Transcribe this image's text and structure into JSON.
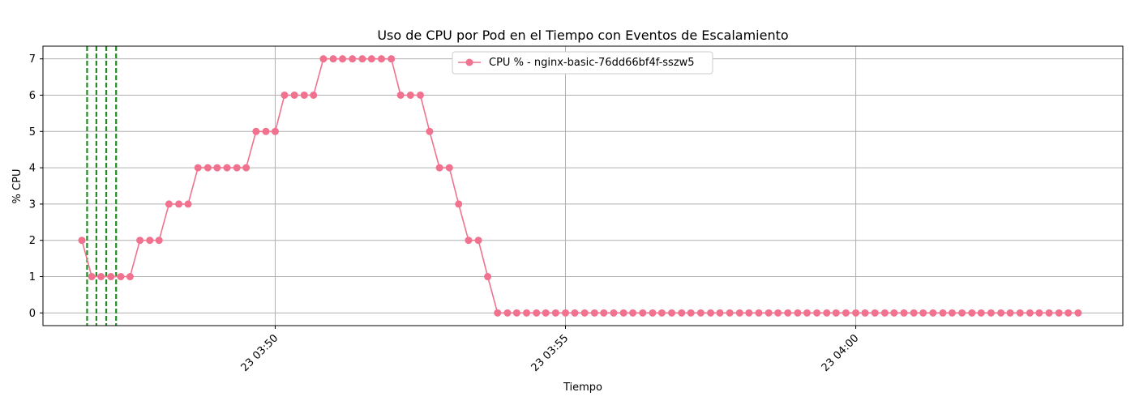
{
  "chart_data": {
    "type": "line",
    "title": "Uso de CPU por Pod en el Tiempo con Eventos de Escalamiento",
    "xlabel": "Tiempo",
    "ylabel": "% CPU",
    "x_tick_labels": [
      "23 03:50",
      "23 03:55",
      "23 04:00"
    ],
    "y_ticks": [
      0,
      1,
      2,
      3,
      4,
      5,
      6,
      7
    ],
    "ylim": [
      -0.35,
      7.35
    ],
    "grid": true,
    "legend_position": "top-center",
    "colors": {
      "series": "#f0728f",
      "events": "#228b22",
      "grid": "#b0b0b0"
    },
    "x_unit": "minutes after 23 03:50",
    "xlim": [
      -4.0,
      14.6
    ],
    "series": [
      {
        "name": "CPU % - nginx-basic-76dd66bf4f-sszw5",
        "x": [
          -3.33,
          -3.16,
          -3.0,
          -2.83,
          -2.66,
          -2.5,
          -2.33,
          -2.16,
          -2.0,
          -1.83,
          -1.66,
          -1.5,
          -1.33,
          -1.16,
          -1.0,
          -0.83,
          -0.66,
          -0.5,
          -0.33,
          -0.16,
          0.0,
          0.16,
          0.33,
          0.5,
          0.66,
          0.83,
          1.0,
          1.16,
          1.33,
          1.5,
          1.66,
          1.83,
          2.0,
          2.16,
          2.33,
          2.5,
          2.66,
          2.83,
          3.0,
          3.16,
          3.33,
          3.5,
          3.66,
          3.83,
          4.0,
          4.16,
          4.33,
          4.5,
          4.66,
          4.83,
          5.0,
          5.16,
          5.33,
          5.5,
          5.66,
          5.83,
          6.0,
          6.16,
          6.33,
          6.5,
          6.66,
          6.83,
          7.0,
          7.16,
          7.33,
          7.5,
          7.66,
          7.83,
          8.0,
          8.16,
          8.33,
          8.5,
          8.66,
          8.83,
          9.0,
          9.16,
          9.33,
          9.5,
          9.66,
          9.83,
          10.0,
          10.16,
          10.33,
          10.5,
          10.66,
          10.83,
          11.0,
          11.16,
          11.33,
          11.5,
          11.66,
          11.83,
          12.0,
          12.16,
          12.33,
          12.5,
          12.66,
          12.83,
          13.0,
          13.16,
          13.33,
          13.5,
          13.66,
          13.83
        ],
        "values": [
          2,
          1,
          1,
          1,
          1,
          1,
          2,
          2,
          2,
          3,
          3,
          3,
          4,
          4,
          4,
          4,
          4,
          4,
          5,
          5,
          5,
          6,
          6,
          6,
          6,
          7,
          7,
          7,
          7,
          7,
          7,
          7,
          7,
          6,
          6,
          6,
          5,
          4,
          4,
          3,
          2,
          2,
          1,
          0,
          0,
          0,
          0,
          0,
          0,
          0,
          0,
          0,
          0,
          0,
          0,
          0,
          0,
          0,
          0,
          0,
          0,
          0,
          0,
          0,
          0,
          0,
          0,
          0,
          0,
          0,
          0,
          0,
          0,
          0,
          0,
          0,
          0,
          0,
          0,
          0,
          0,
          0,
          0,
          0,
          0,
          0,
          0,
          0,
          0,
          0,
          0,
          0,
          0,
          0,
          0,
          0,
          0,
          0,
          0,
          0,
          0,
          0,
          0,
          0
        ]
      }
    ],
    "scaling_events_x": [
      -3.24,
      -3.08,
      -2.91,
      -2.74
    ]
  }
}
